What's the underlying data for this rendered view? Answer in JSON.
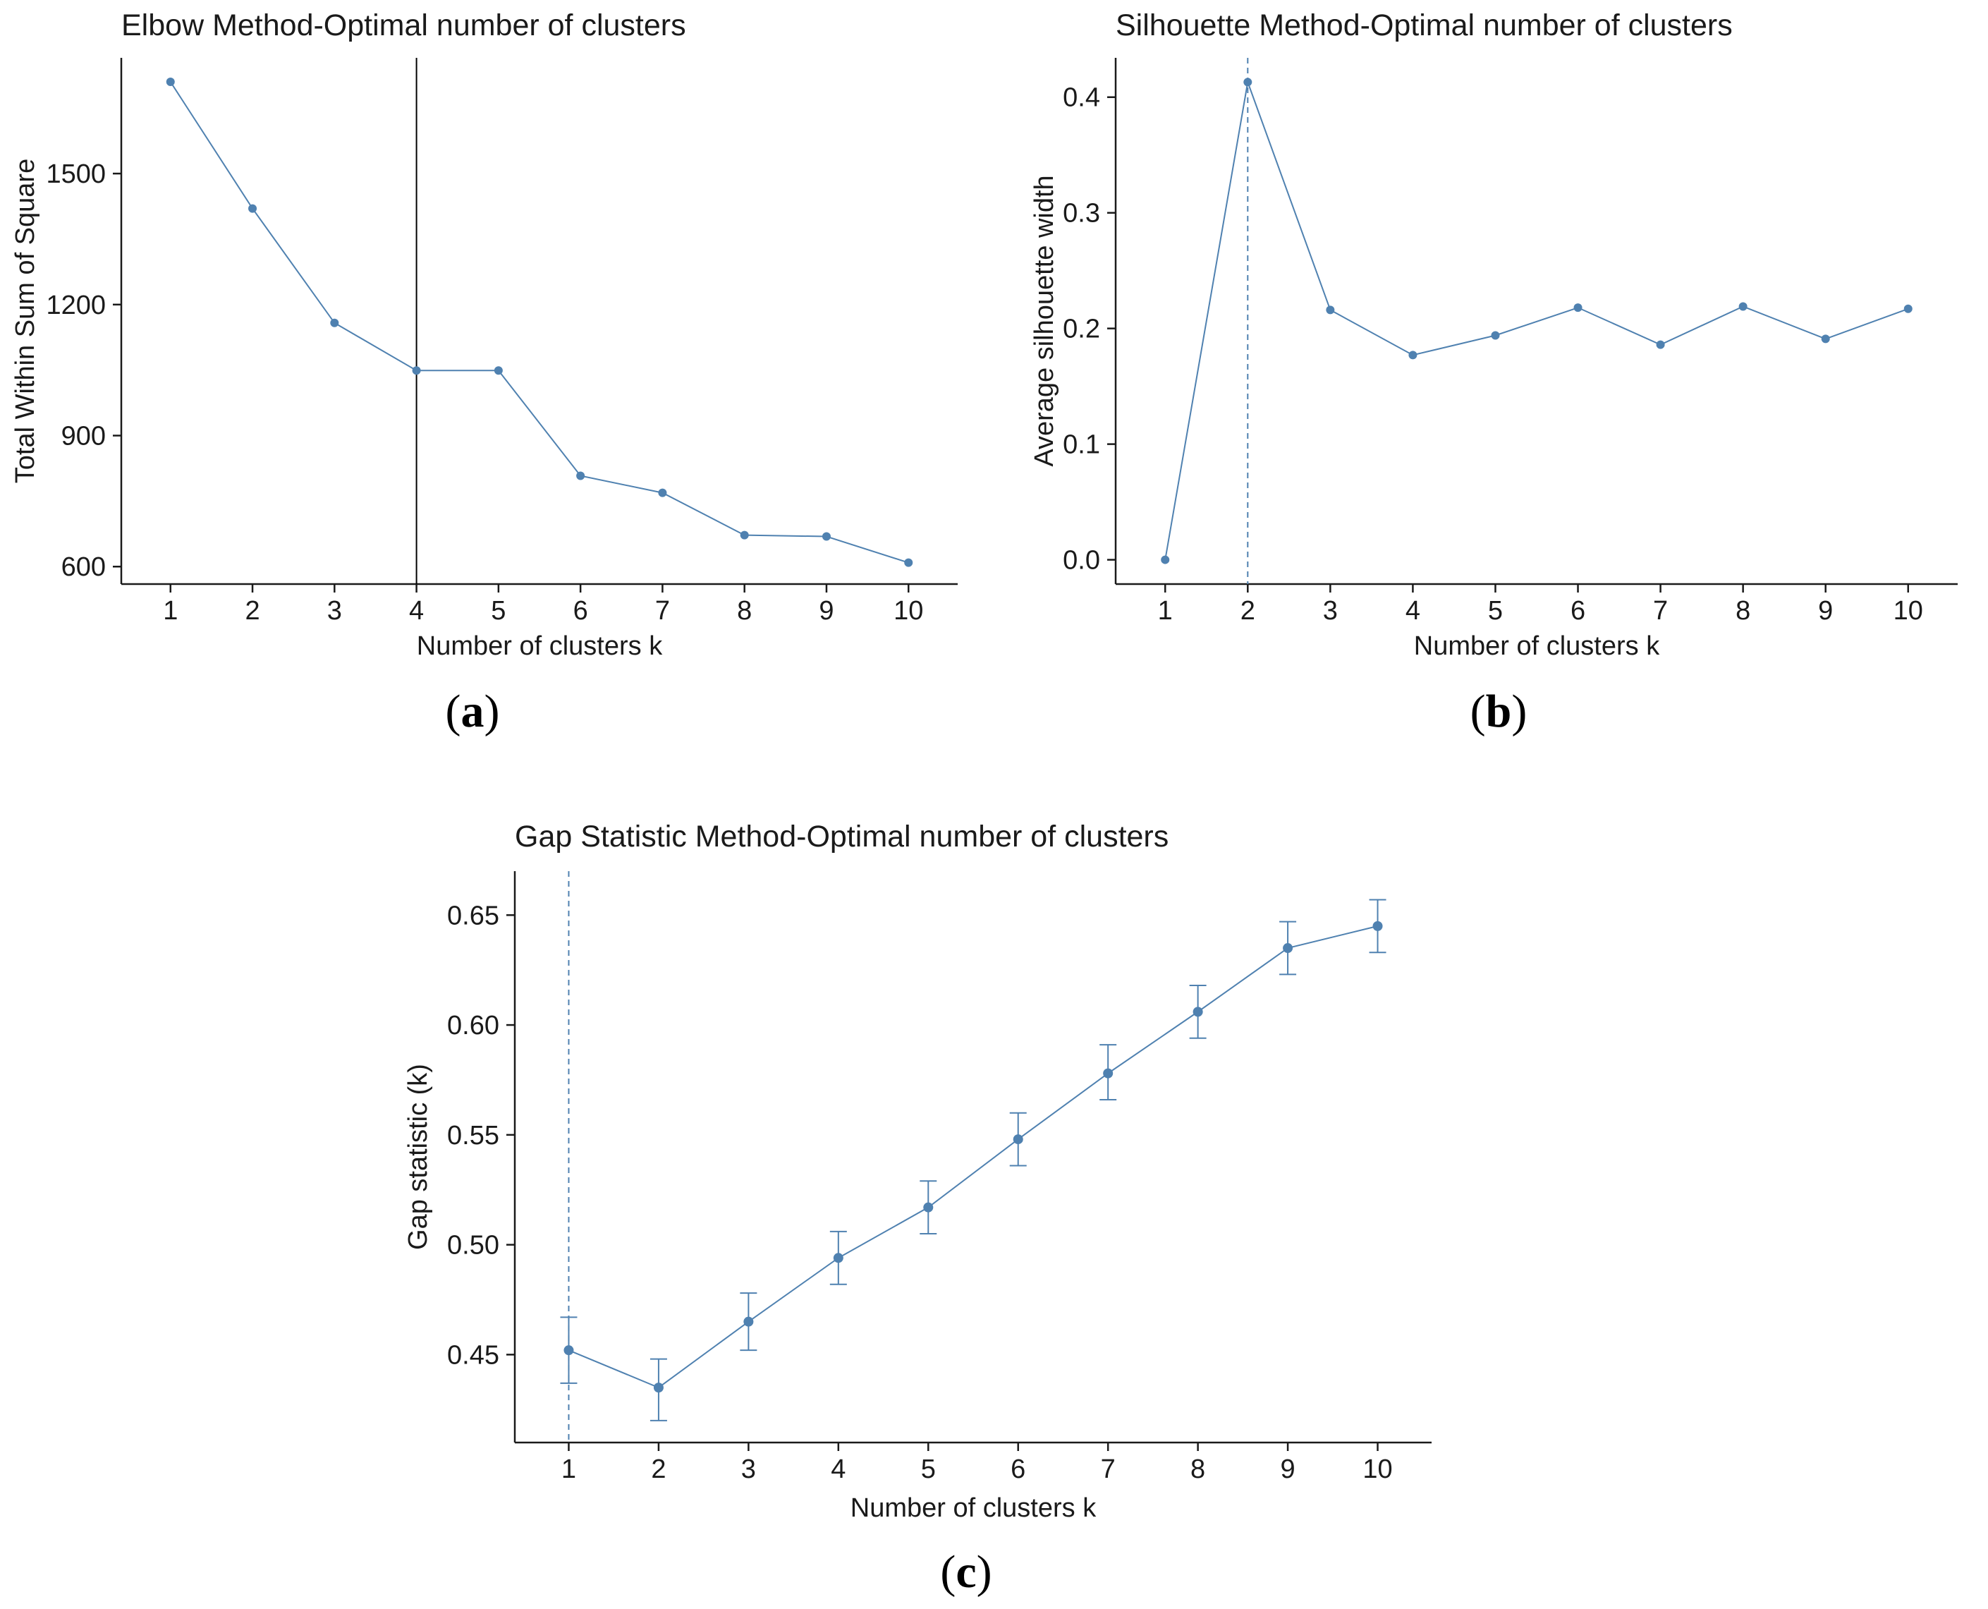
{
  "figure": {
    "series_color": "#4f81b0",
    "axis_color": "#1a1a1a"
  },
  "chart_data": [
    {
      "id": "a",
      "type": "line",
      "title": "Elbow Method-Optimal number of clusters",
      "xlabel": "Number of clusters k",
      "ylabel": "Total Within Sum of Square",
      "x": [
        1,
        2,
        3,
        4,
        5,
        6,
        7,
        8,
        9,
        10
      ],
      "y": [
        1710,
        1420,
        1158,
        1049,
        1049,
        808,
        769,
        672,
        669,
        609
      ],
      "xlim": [
        0.4,
        10.6
      ],
      "ylim": [
        560,
        1765
      ],
      "yticks": [
        600,
        900,
        1200,
        1500
      ],
      "vline": {
        "x": 4,
        "style": "solid"
      },
      "grid": false,
      "panel_label": "(a)"
    },
    {
      "id": "b",
      "type": "line",
      "title": "Silhouette Method-Optimal number of clusters",
      "xlabel": "Number of clusters k",
      "ylabel": "Average silhouette width",
      "x": [
        1,
        2,
        3,
        4,
        5,
        6,
        7,
        8,
        9,
        10
      ],
      "y": [
        0.0,
        0.413,
        0.216,
        0.177,
        0.194,
        0.218,
        0.186,
        0.219,
        0.191,
        0.217
      ],
      "xlim": [
        0.4,
        10.6
      ],
      "ylim": [
        -0.021,
        0.434
      ],
      "yticks": [
        "0.0",
        "0.1",
        "0.2",
        "0.3",
        "0.4"
      ],
      "vline": {
        "x": 2,
        "style": "dashed"
      },
      "grid": false,
      "panel_label": "(b)"
    },
    {
      "id": "c",
      "type": "line",
      "title": "Gap Statistic Method-Optimal number of clusters",
      "xlabel": "Number of clusters k",
      "ylabel": "Gap statistic (k)",
      "x": [
        1,
        2,
        3,
        4,
        5,
        6,
        7,
        8,
        9,
        10
      ],
      "y": [
        0.452,
        0.435,
        0.465,
        0.494,
        0.517,
        0.548,
        0.578,
        0.606,
        0.635,
        0.645
      ],
      "err_low": [
        0.437,
        0.42,
        0.452,
        0.482,
        0.505,
        0.536,
        0.566,
        0.594,
        0.623,
        0.633
      ],
      "err_high": [
        0.467,
        0.448,
        0.478,
        0.506,
        0.529,
        0.56,
        0.591,
        0.618,
        0.647,
        0.657
      ],
      "xlim": [
        0.4,
        10.6
      ],
      "ylim": [
        0.41,
        0.67
      ],
      "yticks": [
        "0.45",
        "0.50",
        "0.55",
        "0.60",
        "0.65"
      ],
      "vline": {
        "x": 1,
        "style": "dashed"
      },
      "grid": false,
      "panel_label": "(c)"
    }
  ]
}
